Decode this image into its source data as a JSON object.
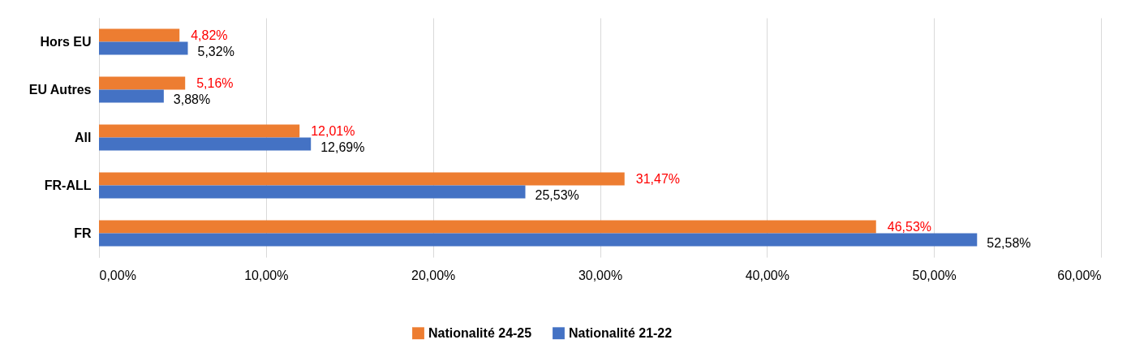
{
  "chart_data": {
    "type": "bar",
    "orientation": "horizontal",
    "categories": [
      "Hors EU",
      "EU Autres",
      "All",
      "FR-ALL",
      "FR"
    ],
    "series": [
      {
        "name": "Nationalité 24-25",
        "color": "#ed7d31",
        "values": [
          4.82,
          5.16,
          12.01,
          31.47,
          46.53
        ],
        "value_labels": [
          "4,82%",
          "5,16%",
          "12,01%",
          "31,47%",
          "46,53%"
        ]
      },
      {
        "name": "Nationalité 21-22",
        "color": "#4472c4",
        "values": [
          5.32,
          3.88,
          12.69,
          25.53,
          52.58
        ],
        "value_labels": [
          "5,32%",
          "3,88%",
          "12,69%",
          "25,53%",
          "52,58%"
        ]
      }
    ],
    "xlim": [
      0,
      60
    ],
    "xticks": [
      {
        "value": 0,
        "label": "0,00%"
      },
      {
        "value": 10,
        "label": "10,00%"
      },
      {
        "value": 20,
        "label": "20,00%"
      },
      {
        "value": 30,
        "label": "30,00%"
      },
      {
        "value": 40,
        "label": "40,00%"
      },
      {
        "value": 50,
        "label": "50,00%"
      },
      {
        "value": 60,
        "label": "60,00%"
      }
    ],
    "grid": "x",
    "legend": "bottom"
  }
}
